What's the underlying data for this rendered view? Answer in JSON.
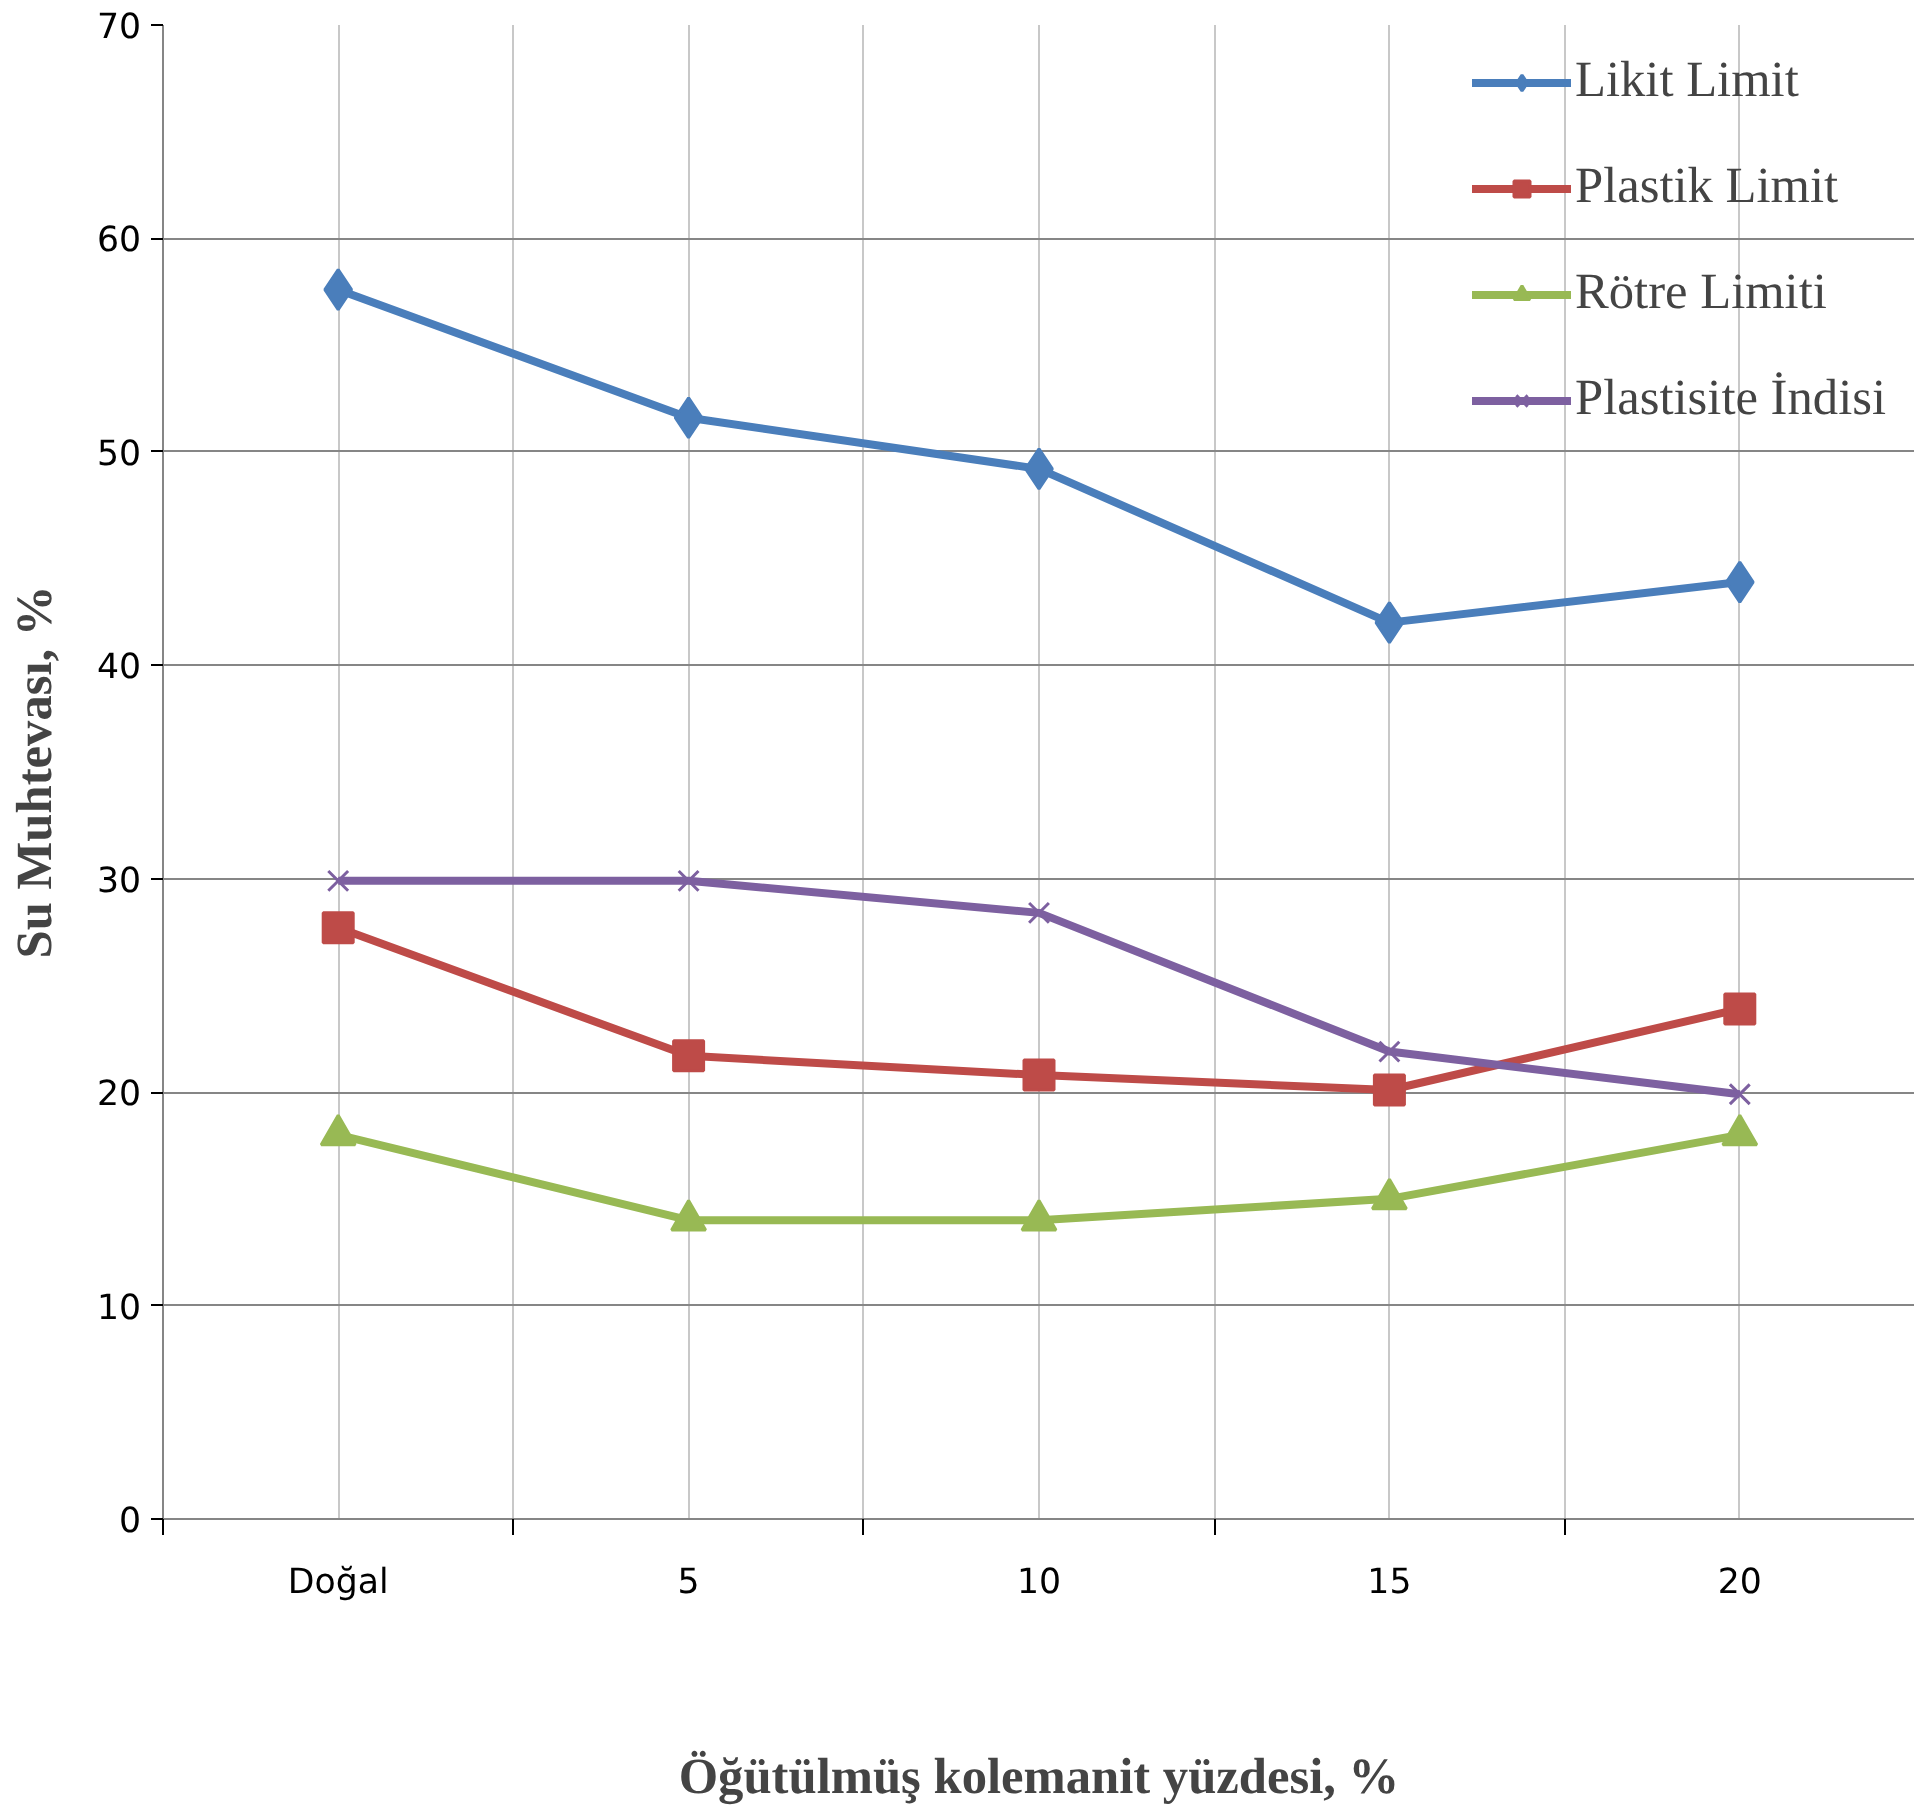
{
  "chart_data": {
    "type": "line",
    "xlabel": "Öğütülmüş kolemanit yüzdesi, %",
    "ylabel": "Su Muhtevası, %",
    "categories": [
      "Doğal",
      "5",
      "10",
      "15",
      "20"
    ],
    "ylim": [
      0,
      70
    ],
    "yticks": [
      0,
      10,
      20,
      30,
      40,
      50,
      60,
      70
    ],
    "grid": true,
    "legend": "top right",
    "line_style": "solid",
    "series": [
      {
        "name": "Likit Limit",
        "color": "#4a7ebb",
        "marker": "diamond",
        "values": [
          57.6,
          51.6,
          49.2,
          42.0,
          43.9
        ]
      },
      {
        "name": "Plastik Limit",
        "color": "#be4b48",
        "marker": "square",
        "values": [
          27.7,
          21.7,
          20.8,
          20.1,
          23.9
        ]
      },
      {
        "name": "Rötre Limiti",
        "color": "#98b954",
        "marker": "triangle",
        "values": [
          18,
          14,
          14,
          15,
          18
        ]
      },
      {
        "name": "Plastisite İndisi",
        "color": "#7d60a0",
        "marker": "cross",
        "values": [
          29.9,
          29.9,
          28.4,
          21.9,
          19.9
        ]
      }
    ]
  }
}
